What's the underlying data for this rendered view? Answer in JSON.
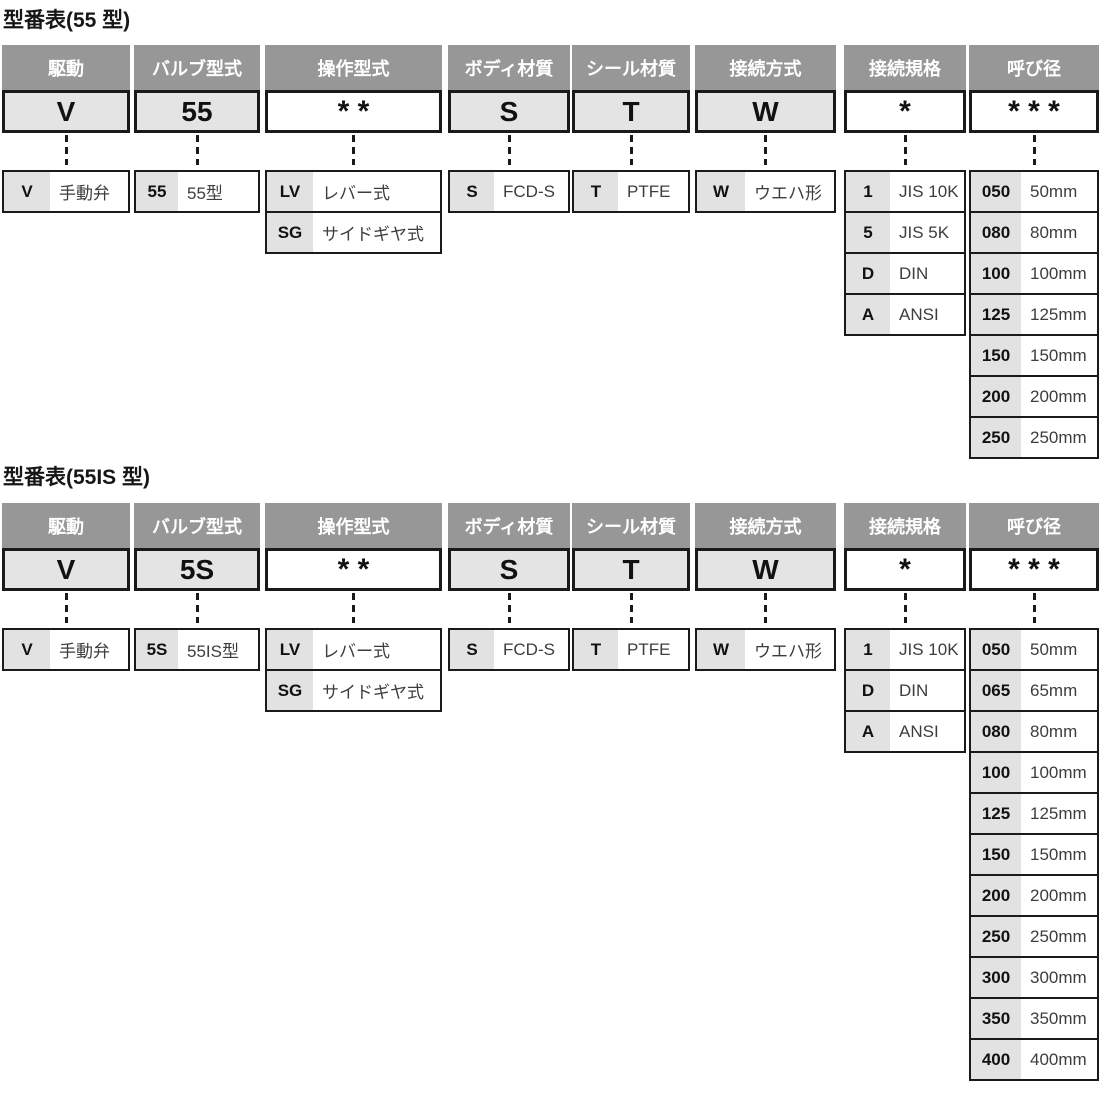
{
  "palette": {
    "header_bg": "#979797",
    "header_text": "#ffffff",
    "code_cell_bg": "#e4e4e4",
    "option_code_bg": "#e2e2e2",
    "border": "#1a1a1a",
    "code_text": "#111111",
    "label_text": "#3d3d3d"
  },
  "tables": [
    {
      "title": "型番表(55 型)",
      "columns": [
        {
          "header": "駆動",
          "code": "V",
          "options": [
            {
              "code": "V",
              "label": "手動弁"
            }
          ]
        },
        {
          "header": "バルブ型式",
          "code": "55",
          "options": [
            {
              "code": "55",
              "label": "55型"
            }
          ]
        },
        {
          "header": "操作型式",
          "code": "* *",
          "options": [
            {
              "code": "LV",
              "label": "レバー式"
            },
            {
              "code": "SG",
              "label": "サイドギヤ式"
            }
          ]
        },
        {
          "header": "ボディ材質",
          "code": "S",
          "options": [
            {
              "code": "S",
              "label": "FCD-S"
            }
          ]
        },
        {
          "header": "シール材質",
          "code": "T",
          "options": [
            {
              "code": "T",
              "label": "PTFE"
            }
          ]
        },
        {
          "header": "接続方式",
          "code": "W",
          "options": [
            {
              "code": "W",
              "label": "ウエハ形"
            }
          ]
        },
        {
          "header": "接続規格",
          "code": "*",
          "options": [
            {
              "code": "1",
              "label": "JIS 10K"
            },
            {
              "code": "5",
              "label": "JIS 5K"
            },
            {
              "code": "D",
              "label": "DIN"
            },
            {
              "code": "A",
              "label": "ANSI"
            }
          ]
        },
        {
          "header": "呼び径",
          "code": "* * *",
          "options": [
            {
              "code": "050",
              "label": "50mm"
            },
            {
              "code": "080",
              "label": "80mm"
            },
            {
              "code": "100",
              "label": "100mm"
            },
            {
              "code": "125",
              "label": "125mm"
            },
            {
              "code": "150",
              "label": "150mm"
            },
            {
              "code": "200",
              "label": "200mm"
            },
            {
              "code": "250",
              "label": "250mm"
            }
          ]
        }
      ]
    },
    {
      "title": "型番表(55IS 型)",
      "columns": [
        {
          "header": "駆動",
          "code": "V",
          "options": [
            {
              "code": "V",
              "label": "手動弁"
            }
          ]
        },
        {
          "header": "バルブ型式",
          "code": "5S",
          "options": [
            {
              "code": "5S",
              "label": "55IS型"
            }
          ]
        },
        {
          "header": "操作型式",
          "code": "* *",
          "options": [
            {
              "code": "LV",
              "label": "レバー式"
            },
            {
              "code": "SG",
              "label": "サイドギヤ式"
            }
          ]
        },
        {
          "header": "ボディ材質",
          "code": "S",
          "options": [
            {
              "code": "S",
              "label": "FCD-S"
            }
          ]
        },
        {
          "header": "シール材質",
          "code": "T",
          "options": [
            {
              "code": "T",
              "label": "PTFE"
            }
          ]
        },
        {
          "header": "接続方式",
          "code": "W",
          "options": [
            {
              "code": "W",
              "label": "ウエハ形"
            }
          ]
        },
        {
          "header": "接続規格",
          "code": "*",
          "options": [
            {
              "code": "1",
              "label": "JIS 10K"
            },
            {
              "code": "D",
              "label": "DIN"
            },
            {
              "code": "A",
              "label": "ANSI"
            }
          ]
        },
        {
          "header": "呼び径",
          "code": "* * *",
          "options": [
            {
              "code": "050",
              "label": "50mm"
            },
            {
              "code": "065",
              "label": "65mm"
            },
            {
              "code": "080",
              "label": "80mm"
            },
            {
              "code": "100",
              "label": "100mm"
            },
            {
              "code": "125",
              "label": "125mm"
            },
            {
              "code": "150",
              "label": "150mm"
            },
            {
              "code": "200",
              "label": "200mm"
            },
            {
              "code": "250",
              "label": "250mm"
            },
            {
              "code": "300",
              "label": "300mm"
            },
            {
              "code": "350",
              "label": "350mm"
            },
            {
              "code": "400",
              "label": "400mm"
            }
          ]
        }
      ]
    }
  ]
}
